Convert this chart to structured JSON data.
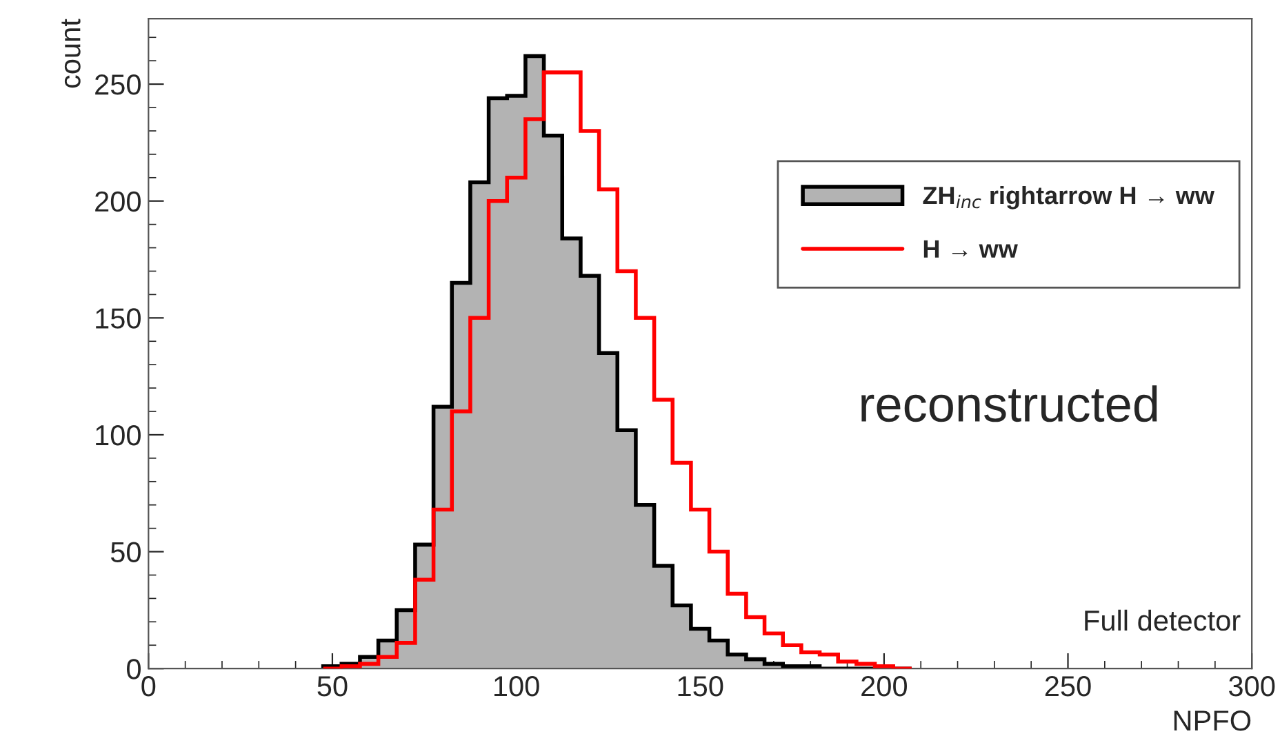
{
  "chart_data": {
    "type": "histogram",
    "xlabel": "NPFO",
    "ylabel": "count",
    "bins": [
      47.5,
      52.5,
      57.5,
      62.5,
      67.5,
      72.5,
      77.5,
      82.5,
      87.5,
      92.5,
      97.5,
      102.5,
      107.5,
      112.5,
      117.5,
      122.5,
      127.5,
      132.5,
      137.5,
      142.5,
      147.5,
      152.5,
      157.5,
      162.5,
      167.5,
      172.5,
      177.5,
      182.5,
      187.5,
      192.5,
      197.5,
      202.5,
      207.5
    ],
    "series": [
      {
        "name": "ZH$_{inc}$ rightarrow H → ww",
        "color": "#b3b3b3",
        "values": [
          1,
          2,
          5,
          12,
          25,
          53,
          112,
          165,
          208,
          244,
          245,
          262,
          228,
          184,
          168,
          135,
          102,
          70,
          44,
          27,
          17,
          12,
          6,
          4,
          2,
          1,
          1,
          0,
          0,
          0,
          0,
          0
        ]
      },
      {
        "name": "H → ww",
        "color": "#ff0000",
        "values": [
          0,
          1,
          2,
          5,
          11,
          38,
          68,
          110,
          150,
          200,
          210,
          235,
          255,
          255,
          230,
          205,
          170,
          150,
          115,
          88,
          68,
          50,
          32,
          22,
          15,
          10,
          7,
          6,
          3,
          2,
          1,
          0
        ]
      }
    ],
    "xlim": [
      0,
      300
    ],
    "xticks": [
      0,
      50,
      100,
      150,
      200,
      250,
      300
    ],
    "ylim": [
      0,
      278
    ],
    "yticks": [
      0,
      50,
      100,
      150,
      200,
      250
    ],
    "grid": false,
    "legend": "top right",
    "annotations": [
      "reconstructed",
      "Full detector"
    ]
  }
}
